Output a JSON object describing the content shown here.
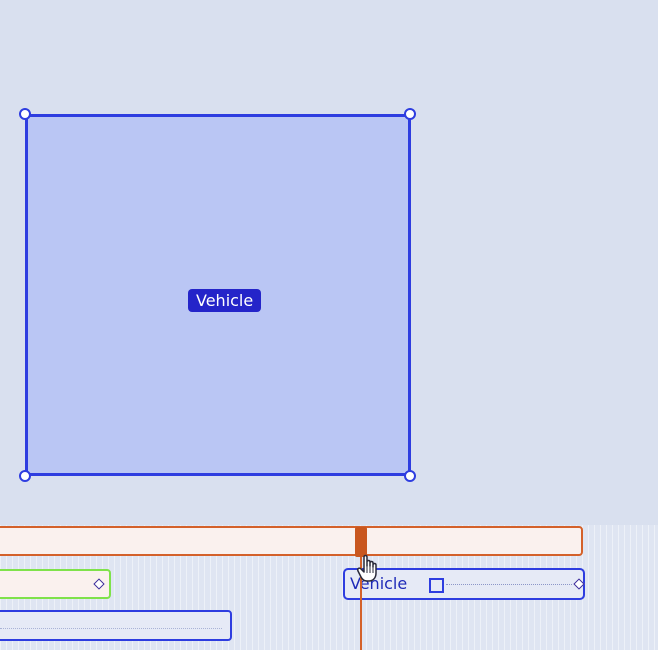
{
  "canvas": {
    "annotation": {
      "label": "Vehicle",
      "colors": {
        "stroke": "#2e3de0",
        "fill": "#a1b0f8",
        "label_bg": "#2424c9"
      }
    }
  },
  "timeline": {
    "tracks": [
      {
        "id": "playhead-track",
        "color": "#d4612a"
      },
      {
        "id": "green-track",
        "color": "#7fe24a",
        "keyframe": "diamond-keyframe-icon"
      },
      {
        "id": "vehicle-track",
        "label": "Vehicle",
        "color": "#2e3de0",
        "icon": "square-icon",
        "keyframe": "diamond-keyframe-icon"
      },
      {
        "id": "bottom-track",
        "color": "#2e3de0"
      }
    ],
    "cursor": "hand-pointer-icon"
  }
}
